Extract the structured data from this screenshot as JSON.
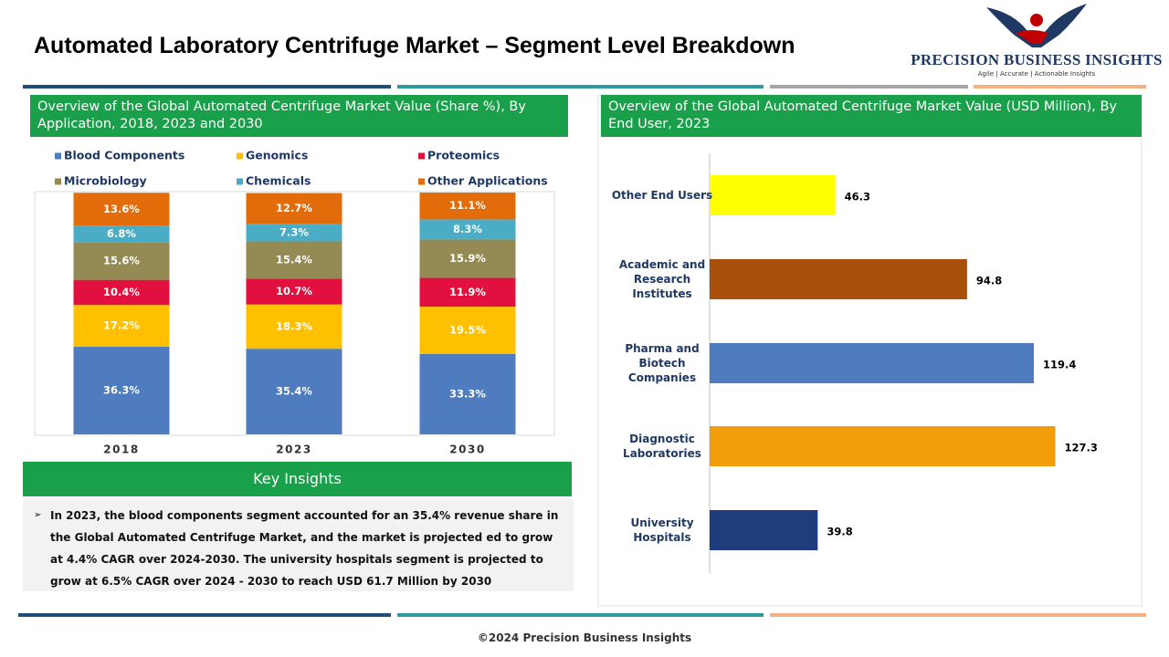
{
  "header": {
    "title": "Automated Laboratory Centrifuge Market – Segment Level Breakdown",
    "brand": "PRECISION BUSINESS INSIGHTS",
    "tagline": "Agile | Accurate | Actionable Insights"
  },
  "chart_data": [
    {
      "type": "bar",
      "stacked": true,
      "title": "Overview of the Global Automated Centrifuge Market Value (Share %), By Application, 2018, 2023 and 2030",
      "categories": [
        "2018",
        "2023",
        "2030"
      ],
      "ylim": [
        0,
        100
      ],
      "series": [
        {
          "name": "Blood Components",
          "color": "#4f7cbf",
          "values": [
            36.3,
            35.4,
            33.3
          ],
          "value_labels": [
            "36.3%",
            "35.4%",
            "33.3%"
          ]
        },
        {
          "name": "Genomics",
          "color": "#ffc000",
          "values": [
            17.2,
            18.3,
            19.5
          ],
          "value_labels": [
            "17.2%",
            "18.3%",
            "19.5%"
          ]
        },
        {
          "name": "Proteomics",
          "color": "#e2103e",
          "values": [
            10.4,
            10.7,
            11.9
          ],
          "value_labels": [
            "10.4%",
            "10.7%",
            "11.9%"
          ]
        },
        {
          "name": "Microbiology",
          "color": "#948a54",
          "values": [
            15.6,
            15.4,
            15.9
          ],
          "value_labels": [
            "15.6%",
            "15.4%",
            "15.9%"
          ]
        },
        {
          "name": "Chemicals",
          "color": "#4bacc6",
          "values": [
            6.8,
            7.3,
            8.3
          ],
          "value_labels": [
            "6.8%",
            "7.3%",
            "8.3%"
          ]
        },
        {
          "name": "Other Applications",
          "color": "#e36c0a",
          "values": [
            13.6,
            12.7,
            11.1
          ],
          "value_labels": [
            "13.6%",
            "12.7%",
            "11.1%"
          ]
        }
      ]
    },
    {
      "type": "bar",
      "orientation": "horizontal",
      "title": "Overview of the Global Automated Centrifuge Market Value (USD Million), By End User, 2023",
      "categories": [
        "Other End Users",
        "Academic and Research Institutes",
        "Pharma and Biotech Companies",
        "Diagnostic Laboratories",
        "University Hospitals"
      ],
      "values": [
        46.3,
        94.8,
        119.4,
        127.3,
        39.8
      ],
      "colors": [
        "#ffff00",
        "#a9510c",
        "#4f7cbf",
        "#f29d0a",
        "#1f3c7c"
      ],
      "xlim": [
        0,
        150
      ]
    }
  ],
  "insights": {
    "title": "Key Insights",
    "text": "In 2023, the blood components segment accounted for an 35.4%  revenue share in the Global Automated Centrifuge Market, and the market is projected ed to grow at 4.4% CAGR over 2024-2030. The university hospitals segment is projected to grow at 6.5% CAGR over 2024 - 2030 to reach USD 61.7  Million by 2030"
  },
  "footer": "©2024 Precision Business Insights"
}
